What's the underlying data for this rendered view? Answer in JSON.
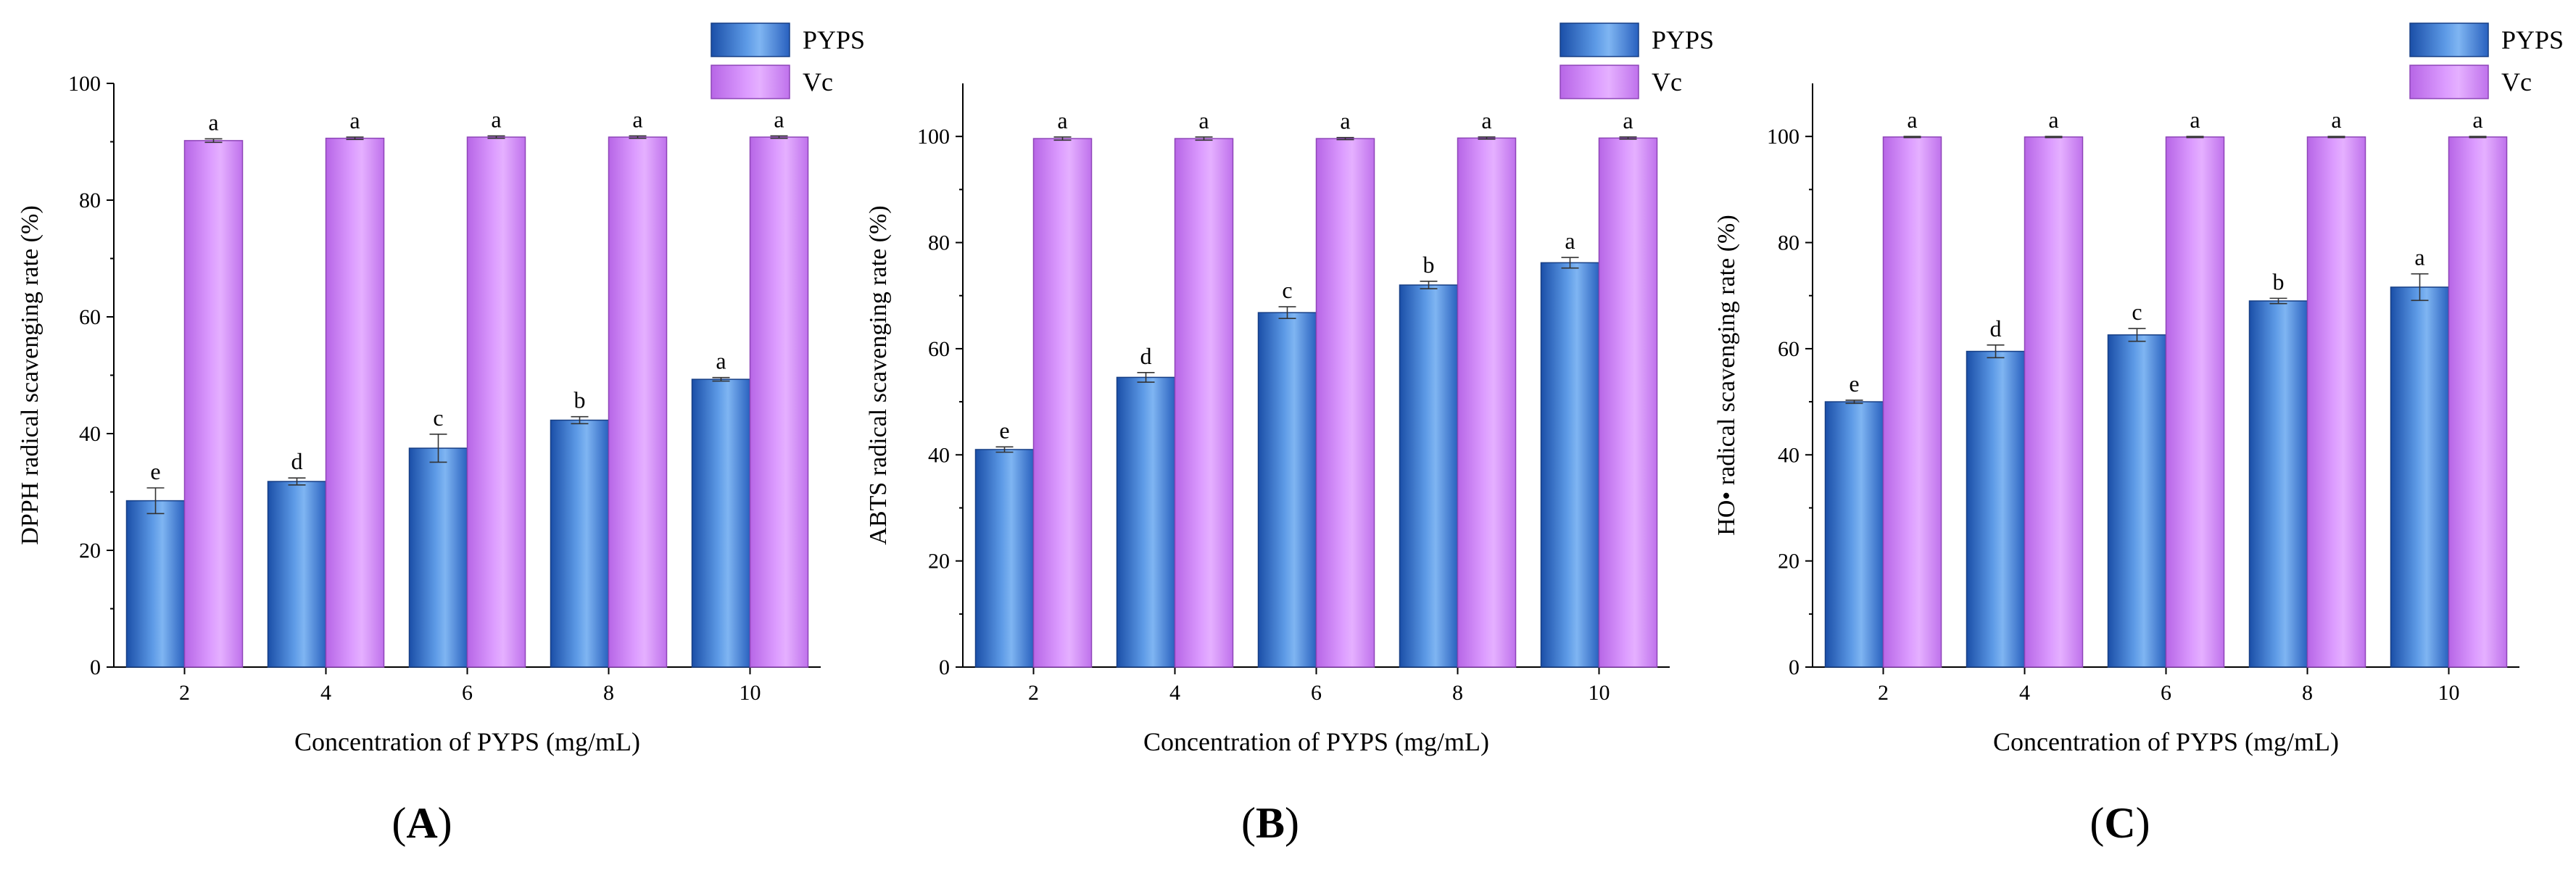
{
  "panels_common": {
    "legend": [
      {
        "name": "PYPS",
        "color": "#4a86d8"
      },
      {
        "name": "Vc",
        "color": "#cc80f2"
      }
    ],
    "legend_placement": "top-right, outside plot"
  },
  "chart_data": [
    {
      "type": "bar",
      "panel_label": "A",
      "xlabel": "Concentration of PYPS (mg/mL)",
      "ylabel": "DPPH radical scavenging rate (%)",
      "categories": [
        "2",
        "4",
        "6",
        "8",
        "10"
      ],
      "ylim": [
        0,
        100
      ],
      "yticks": [
        0,
        20,
        40,
        60,
        80,
        100
      ],
      "grid": false,
      "series": [
        {
          "name": "PYPS",
          "values": [
            28.5,
            31.8,
            37.5,
            42.3,
            49.3
          ],
          "errors": [
            2.2,
            0.6,
            2.4,
            0.6,
            0.3
          ],
          "letters": [
            "e",
            "d",
            "c",
            "b",
            "a"
          ]
        },
        {
          "name": "Vc",
          "values": [
            90.2,
            90.6,
            90.8,
            90.8,
            90.8
          ],
          "errors": [
            0.3,
            0.2,
            0.2,
            0.2,
            0.2
          ],
          "letters": [
            "a",
            "a",
            "a",
            "a",
            "a"
          ]
        }
      ]
    },
    {
      "type": "bar",
      "panel_label": "B",
      "xlabel": "Concentration of PYPS (mg/mL)",
      "ylabel": "ABTS radical scavenging rate (%)",
      "categories": [
        "2",
        "4",
        "6",
        "8",
        "10"
      ],
      "ylim": [
        0,
        110
      ],
      "yticks": [
        0,
        20,
        40,
        60,
        80,
        100
      ],
      "grid": false,
      "series": [
        {
          "name": "PYPS",
          "values": [
            41.0,
            54.6,
            66.8,
            72.0,
            76.2
          ],
          "errors": [
            0.5,
            0.9,
            1.1,
            0.7,
            1.0
          ],
          "letters": [
            "e",
            "d",
            "c",
            "b",
            "a"
          ]
        },
        {
          "name": "Vc",
          "values": [
            99.6,
            99.6,
            99.6,
            99.7,
            99.7
          ],
          "errors": [
            0.3,
            0.3,
            0.2,
            0.2,
            0.2
          ],
          "letters": [
            "a",
            "a",
            "a",
            "a",
            "a"
          ]
        }
      ]
    },
    {
      "type": "bar",
      "panel_label": "C",
      "xlabel": "Concentration of PYPS (mg/mL)",
      "ylabel": "HO• radical scavenging rate (%)",
      "categories": [
        "2",
        "4",
        "6",
        "8",
        "10"
      ],
      "ylim": [
        0,
        110
      ],
      "yticks": [
        0,
        20,
        40,
        60,
        80,
        100
      ],
      "grid": false,
      "series": [
        {
          "name": "PYPS",
          "values": [
            50.0,
            59.5,
            62.6,
            69.0,
            71.6
          ],
          "errors": [
            0.3,
            1.2,
            1.2,
            0.5,
            2.5
          ],
          "letters": [
            "e",
            "d",
            "c",
            "b",
            "a"
          ]
        },
        {
          "name": "Vc",
          "values": [
            99.9,
            99.9,
            99.9,
            99.9,
            99.9
          ],
          "errors": [
            0.1,
            0.1,
            0.1,
            0.1,
            0.1
          ],
          "letters": [
            "a",
            "a",
            "a",
            "a",
            "a"
          ]
        }
      ]
    }
  ]
}
